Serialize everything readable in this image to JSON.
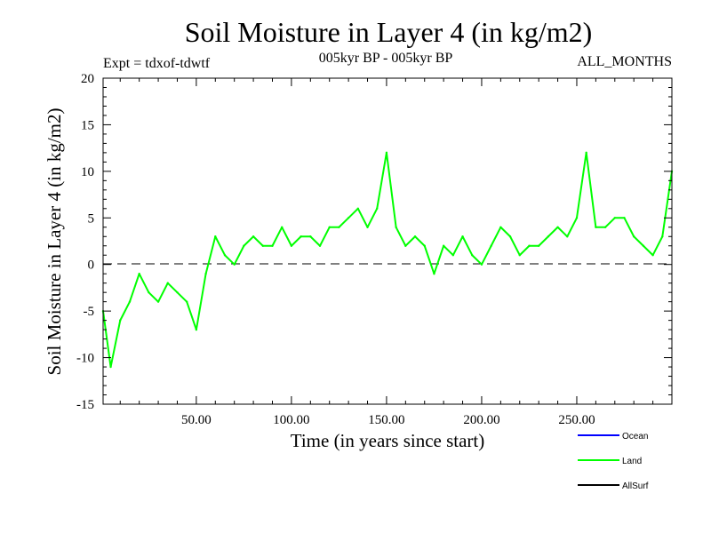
{
  "chart_data": {
    "type": "line",
    "title": "Soil Moisture in Layer 4 (in kg/m2)",
    "subtitle_left": "Expt = tdxof-tdwtf",
    "subtitle_center": "005kyr BP - 005kyr BP",
    "subtitle_right": "ALL_MONTHS",
    "xlabel": "Time (in years since start)",
    "ylabel": "Soil Moisture in Layer 4 (in kg/m2)",
    "xlim": [
      1,
      300
    ],
    "ylim": [
      -15,
      20
    ],
    "x_ticks": [
      50,
      100,
      150,
      200,
      250
    ],
    "x_tick_labels": [
      "50.00",
      "100.00",
      "150.00",
      "200.00",
      "250.00"
    ],
    "y_ticks": [
      -15,
      -10,
      -5,
      0,
      5,
      10,
      15,
      20
    ],
    "y_tick_labels": [
      "-15",
      "-10",
      "-5",
      "0",
      "5",
      "10",
      "15",
      "20"
    ],
    "zero_line": "dashed",
    "grid": false,
    "legend": "bottom-right",
    "series": [
      {
        "name": "Ocean",
        "label": "Ocean",
        "color": "#0000ff",
        "values": []
      },
      {
        "name": "Land",
        "label": "Land",
        "color": "#00ff00",
        "x": [
          1,
          5,
          10,
          15,
          20,
          25,
          30,
          35,
          40,
          45,
          50,
          55,
          60,
          65,
          70,
          75,
          80,
          85,
          90,
          95,
          100,
          105,
          110,
          115,
          120,
          125,
          130,
          135,
          140,
          145,
          150,
          155,
          160,
          165,
          170,
          175,
          180,
          185,
          190,
          195,
          200,
          205,
          210,
          215,
          220,
          225,
          230,
          235,
          240,
          245,
          250,
          255,
          260,
          265,
          270,
          275,
          280,
          285,
          290,
          295,
          300
        ],
        "values": [
          -5,
          -11,
          -6,
          -4,
          -1,
          -3,
          -4,
          -2,
          -3,
          -4,
          -7,
          -1,
          3,
          1,
          0,
          2,
          3,
          2,
          2,
          4,
          2,
          3,
          3,
          2,
          4,
          4,
          5,
          6,
          4,
          6,
          12,
          4,
          2,
          3,
          2,
          -1,
          2,
          1,
          3,
          1,
          0,
          2,
          4,
          3,
          1,
          2,
          2,
          3,
          4,
          3,
          5,
          12,
          4,
          4,
          5,
          5,
          3,
          2,
          1,
          3,
          10
        ]
      },
      {
        "name": "AllSurf",
        "label": "AllSurf",
        "color": "#000000",
        "values": []
      }
    ]
  }
}
